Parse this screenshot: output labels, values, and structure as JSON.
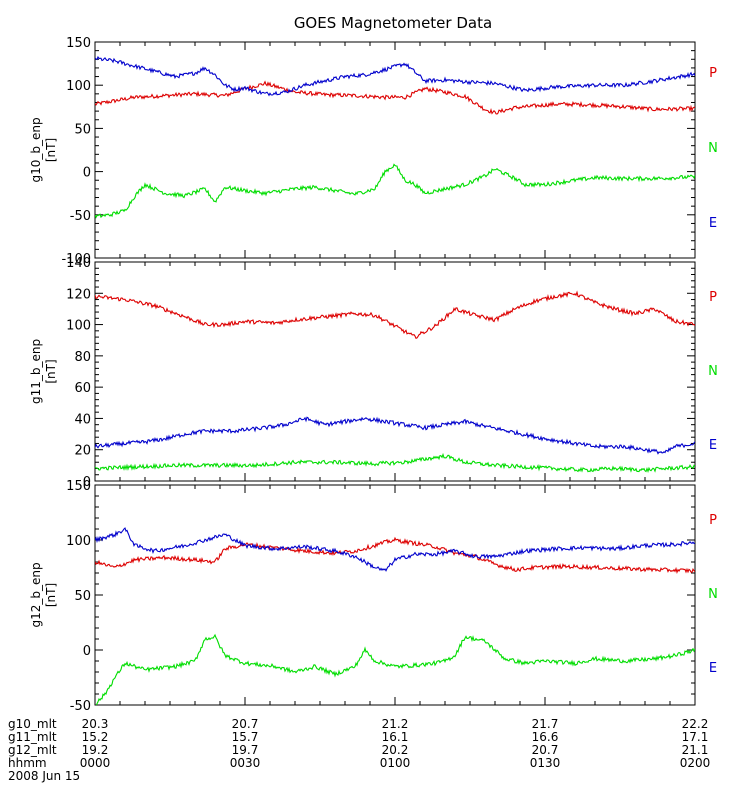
{
  "title": "GOES Magnetometer Data",
  "colors": {
    "P": "#dd0000",
    "N": "#00dd00",
    "E": "#0000cc",
    "axis": "#000000"
  },
  "chart_data": [
    {
      "type": "line",
      "ylabel": "g10_b_enp",
      "yunit": "[nT]",
      "ylim": [
        -100,
        150
      ],
      "yticks": [
        -100,
        -50,
        0,
        50,
        100,
        150
      ],
      "xlim": [
        0,
        120
      ],
      "legend": [
        "P",
        "N",
        "E"
      ],
      "series": [
        {
          "name": "P",
          "color": "#dd0000",
          "x": [
            0,
            4,
            8,
            14,
            20,
            26,
            30,
            34,
            40,
            46,
            52,
            58,
            62,
            66,
            70,
            74,
            78,
            80,
            84,
            88,
            92,
            96,
            100,
            106,
            112,
            120
          ],
          "y": [
            78,
            82,
            86,
            88,
            90,
            88,
            96,
            102,
            92,
            89,
            88,
            86,
            86,
            96,
            92,
            87,
            72,
            68,
            74,
            76,
            78,
            78,
            77,
            75,
            72,
            73
          ]
        },
        {
          "name": "E",
          "color": "#0000cc",
          "x": [
            0,
            4,
            8,
            12,
            16,
            20,
            22,
            24,
            26,
            28,
            30,
            34,
            38,
            42,
            46,
            50,
            54,
            58,
            62,
            66,
            70,
            74,
            80,
            86,
            92,
            100,
            106,
            112,
            120
          ],
          "y": [
            131,
            128,
            122,
            116,
            110,
            114,
            120,
            112,
            100,
            95,
            97,
            90,
            92,
            100,
            105,
            110,
            112,
            118,
            125,
            105,
            106,
            104,
            102,
            94,
            98,
            100,
            100,
            105,
            113
          ]
        },
        {
          "name": "N",
          "color": "#00dd00",
          "x": [
            0,
            3,
            6,
            8,
            10,
            14,
            18,
            22,
            24,
            26,
            30,
            34,
            40,
            44,
            48,
            52,
            56,
            58,
            60,
            62,
            64,
            66,
            70,
            74,
            78,
            80,
            84,
            86,
            90,
            96,
            100,
            106,
            112,
            120
          ],
          "y": [
            -52,
            -50,
            -45,
            -28,
            -15,
            -25,
            -28,
            -20,
            -35,
            -18,
            -22,
            -25,
            -20,
            -18,
            -22,
            -26,
            -20,
            0,
            8,
            -10,
            -15,
            -25,
            -20,
            -15,
            -5,
            3,
            -8,
            -15,
            -15,
            -10,
            -7,
            -8,
            -8,
            -6
          ]
        }
      ],
      "labels": [
        {
          "text": "P",
          "color": "#dd0000"
        },
        {
          "text": "N",
          "color": "#00dd00"
        },
        {
          "text": "E",
          "color": "#0000cc"
        }
      ]
    },
    {
      "type": "line",
      "ylabel": "g11_b_enp",
      "yunit": "[nT]",
      "ylim": [
        0,
        140
      ],
      "yticks": [
        0,
        20,
        40,
        60,
        80,
        100,
        120,
        140
      ],
      "xlim": [
        0,
        120
      ],
      "legend": [
        "P",
        "N",
        "E"
      ],
      "series": [
        {
          "name": "P",
          "color": "#dd0000",
          "x": [
            0,
            6,
            12,
            18,
            22,
            26,
            30,
            36,
            40,
            46,
            52,
            56,
            60,
            64,
            68,
            72,
            76,
            80,
            84,
            88,
            92,
            96,
            100,
            104,
            108,
            112,
            116,
            120
          ],
          "y": [
            118,
            116,
            112,
            105,
            100,
            100,
            102,
            101,
            103,
            105,
            107,
            106,
            99,
            92,
            99,
            110,
            106,
            103,
            110,
            115,
            118,
            120,
            114,
            110,
            107,
            110,
            102,
            100
          ]
        },
        {
          "name": "E",
          "color": "#0000cc",
          "x": [
            0,
            6,
            10,
            14,
            18,
            22,
            28,
            34,
            38,
            42,
            46,
            50,
            54,
            58,
            62,
            66,
            70,
            74,
            78,
            84,
            90,
            96,
            100,
            106,
            110,
            114,
            116,
            120
          ],
          "y": [
            22,
            24,
            25,
            27,
            30,
            32,
            32,
            34,
            36,
            40,
            36,
            38,
            40,
            38,
            36,
            34,
            36,
            38,
            35,
            31,
            27,
            24,
            22,
            22,
            20,
            18,
            22,
            24
          ]
        },
        {
          "name": "N",
          "color": "#00dd00",
          "x": [
            0,
            8,
            16,
            24,
            32,
            40,
            48,
            56,
            62,
            66,
            70,
            74,
            80,
            86,
            92,
            98,
            104,
            110,
            114,
            120
          ],
          "y": [
            8,
            9,
            10,
            10,
            10,
            12,
            12,
            11,
            12,
            14,
            16,
            12,
            10,
            9,
            8,
            7,
            8,
            7,
            8,
            9
          ]
        }
      ],
      "labels": [
        {
          "text": "P",
          "color": "#dd0000"
        },
        {
          "text": "N",
          "color": "#00dd00"
        },
        {
          "text": "E",
          "color": "#0000cc"
        }
      ]
    },
    {
      "type": "line",
      "ylabel": "g12_b_enp",
      "yunit": "[nT]",
      "ylim": [
        -50,
        150
      ],
      "yticks": [
        -50,
        0,
        50,
        100,
        150
      ],
      "xlim": [
        0,
        120
      ],
      "legend": [
        "P",
        "N",
        "E"
      ],
      "series": [
        {
          "name": "P",
          "color": "#dd0000",
          "x": [
            0,
            4,
            8,
            14,
            20,
            24,
            26,
            30,
            36,
            42,
            48,
            52,
            56,
            58,
            60,
            64,
            68,
            72,
            76,
            80,
            84,
            88,
            94,
            100,
            106,
            112,
            120
          ],
          "y": [
            80,
            75,
            82,
            84,
            82,
            80,
            92,
            96,
            93,
            90,
            88,
            90,
            95,
            98,
            100,
            97,
            94,
            88,
            85,
            78,
            73,
            75,
            76,
            75,
            74,
            73,
            72
          ]
        },
        {
          "name": "E",
          "color": "#0000cc",
          "x": [
            0,
            4,
            6,
            8,
            12,
            18,
            22,
            26,
            30,
            36,
            42,
            48,
            52,
            56,
            58,
            60,
            64,
            68,
            72,
            76,
            80,
            86,
            92,
            98,
            104,
            110,
            116,
            120
          ],
          "y": [
            100,
            105,
            110,
            95,
            90,
            95,
            100,
            105,
            95,
            92,
            94,
            90,
            85,
            75,
            72,
            82,
            87,
            87,
            90,
            85,
            85,
            90,
            92,
            93,
            92,
            95,
            96,
            98
          ]
        },
        {
          "name": "N",
          "color": "#00dd00",
          "x": [
            0,
            2,
            4,
            6,
            10,
            16,
            20,
            22,
            24,
            26,
            30,
            36,
            40,
            44,
            48,
            52,
            54,
            56,
            60,
            64,
            68,
            70,
            72,
            74,
            78,
            82,
            86,
            90,
            96,
            100,
            106,
            112,
            116,
            120
          ],
          "y": [
            -50,
            -40,
            -25,
            -12,
            -18,
            -15,
            -10,
            10,
            12,
            -5,
            -12,
            -15,
            -20,
            -15,
            -22,
            -15,
            0,
            -10,
            -15,
            -14,
            -12,
            -10,
            -5,
            12,
            8,
            -8,
            -12,
            -10,
            -12,
            -8,
            -10,
            -8,
            -5,
            0
          ]
        }
      ],
      "labels": [
        {
          "text": "P",
          "color": "#dd0000"
        },
        {
          "text": "N",
          "color": "#00dd00"
        },
        {
          "text": "E",
          "color": "#0000cc"
        }
      ]
    }
  ],
  "xaxis": {
    "ticks": [
      0,
      30,
      60,
      90,
      120
    ],
    "rows": [
      {
        "label": "g10_mlt",
        "values": [
          "20.3",
          "20.7",
          "21.2",
          "21.7",
          "22.2"
        ]
      },
      {
        "label": "g11_mlt",
        "values": [
          "15.2",
          "15.7",
          "16.1",
          "16.6",
          "17.1"
        ]
      },
      {
        "label": "g12_mlt",
        "values": [
          "19.2",
          "19.7",
          "20.2",
          "20.7",
          "21.1"
        ]
      },
      {
        "label": "hhmm",
        "values": [
          "0000",
          "0030",
          "0100",
          "0130",
          "0200"
        ]
      }
    ],
    "date": "2008 Jun 15"
  }
}
